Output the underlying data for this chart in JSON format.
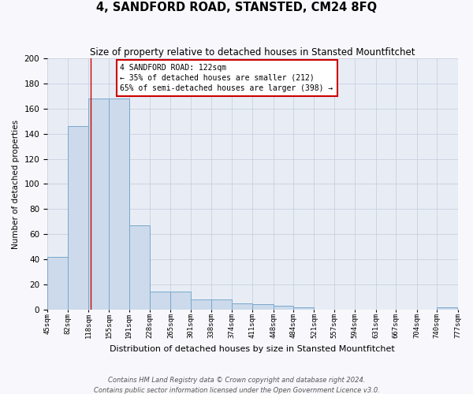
{
  "title": "4, SANDFORD ROAD, STANSTED, CM24 8FQ",
  "subtitle": "Size of property relative to detached houses in Stansted Mountfitchet",
  "xlabel": "Distribution of detached houses by size in Stansted Mountfitchet",
  "ylabel": "Number of detached properties",
  "footnote1": "Contains HM Land Registry data © Crown copyright and database right 2024.",
  "footnote2": "Contains public sector information licensed under the Open Government Licence v3.0.",
  "bins": [
    45,
    82,
    118,
    155,
    191,
    228,
    265,
    301,
    338,
    374,
    411,
    448,
    484,
    521,
    557,
    594,
    631,
    667,
    704,
    740,
    777
  ],
  "counts": [
    42,
    146,
    168,
    168,
    67,
    14,
    14,
    8,
    8,
    5,
    4,
    3,
    2,
    0,
    0,
    0,
    0,
    0,
    0,
    2
  ],
  "bar_color": "#ccdaeb",
  "bar_edge_color": "#7aa8cc",
  "grid_color": "#c8d0e0",
  "bg_color": "#e8edf5",
  "property_size": 122,
  "annotation_title": "4 SANDFORD ROAD: 122sqm",
  "annotation_line1": "← 35% of detached houses are smaller (212)",
  "annotation_line2": "65% of semi-detached houses are larger (398) →",
  "annotation_box_color": "#ffffff",
  "annotation_border_color": "#cc0000",
  "red_line_color": "#cc0000",
  "ylim": [
    0,
    200
  ],
  "yticks": [
    0,
    20,
    40,
    60,
    80,
    100,
    120,
    140,
    160,
    180,
    200
  ]
}
